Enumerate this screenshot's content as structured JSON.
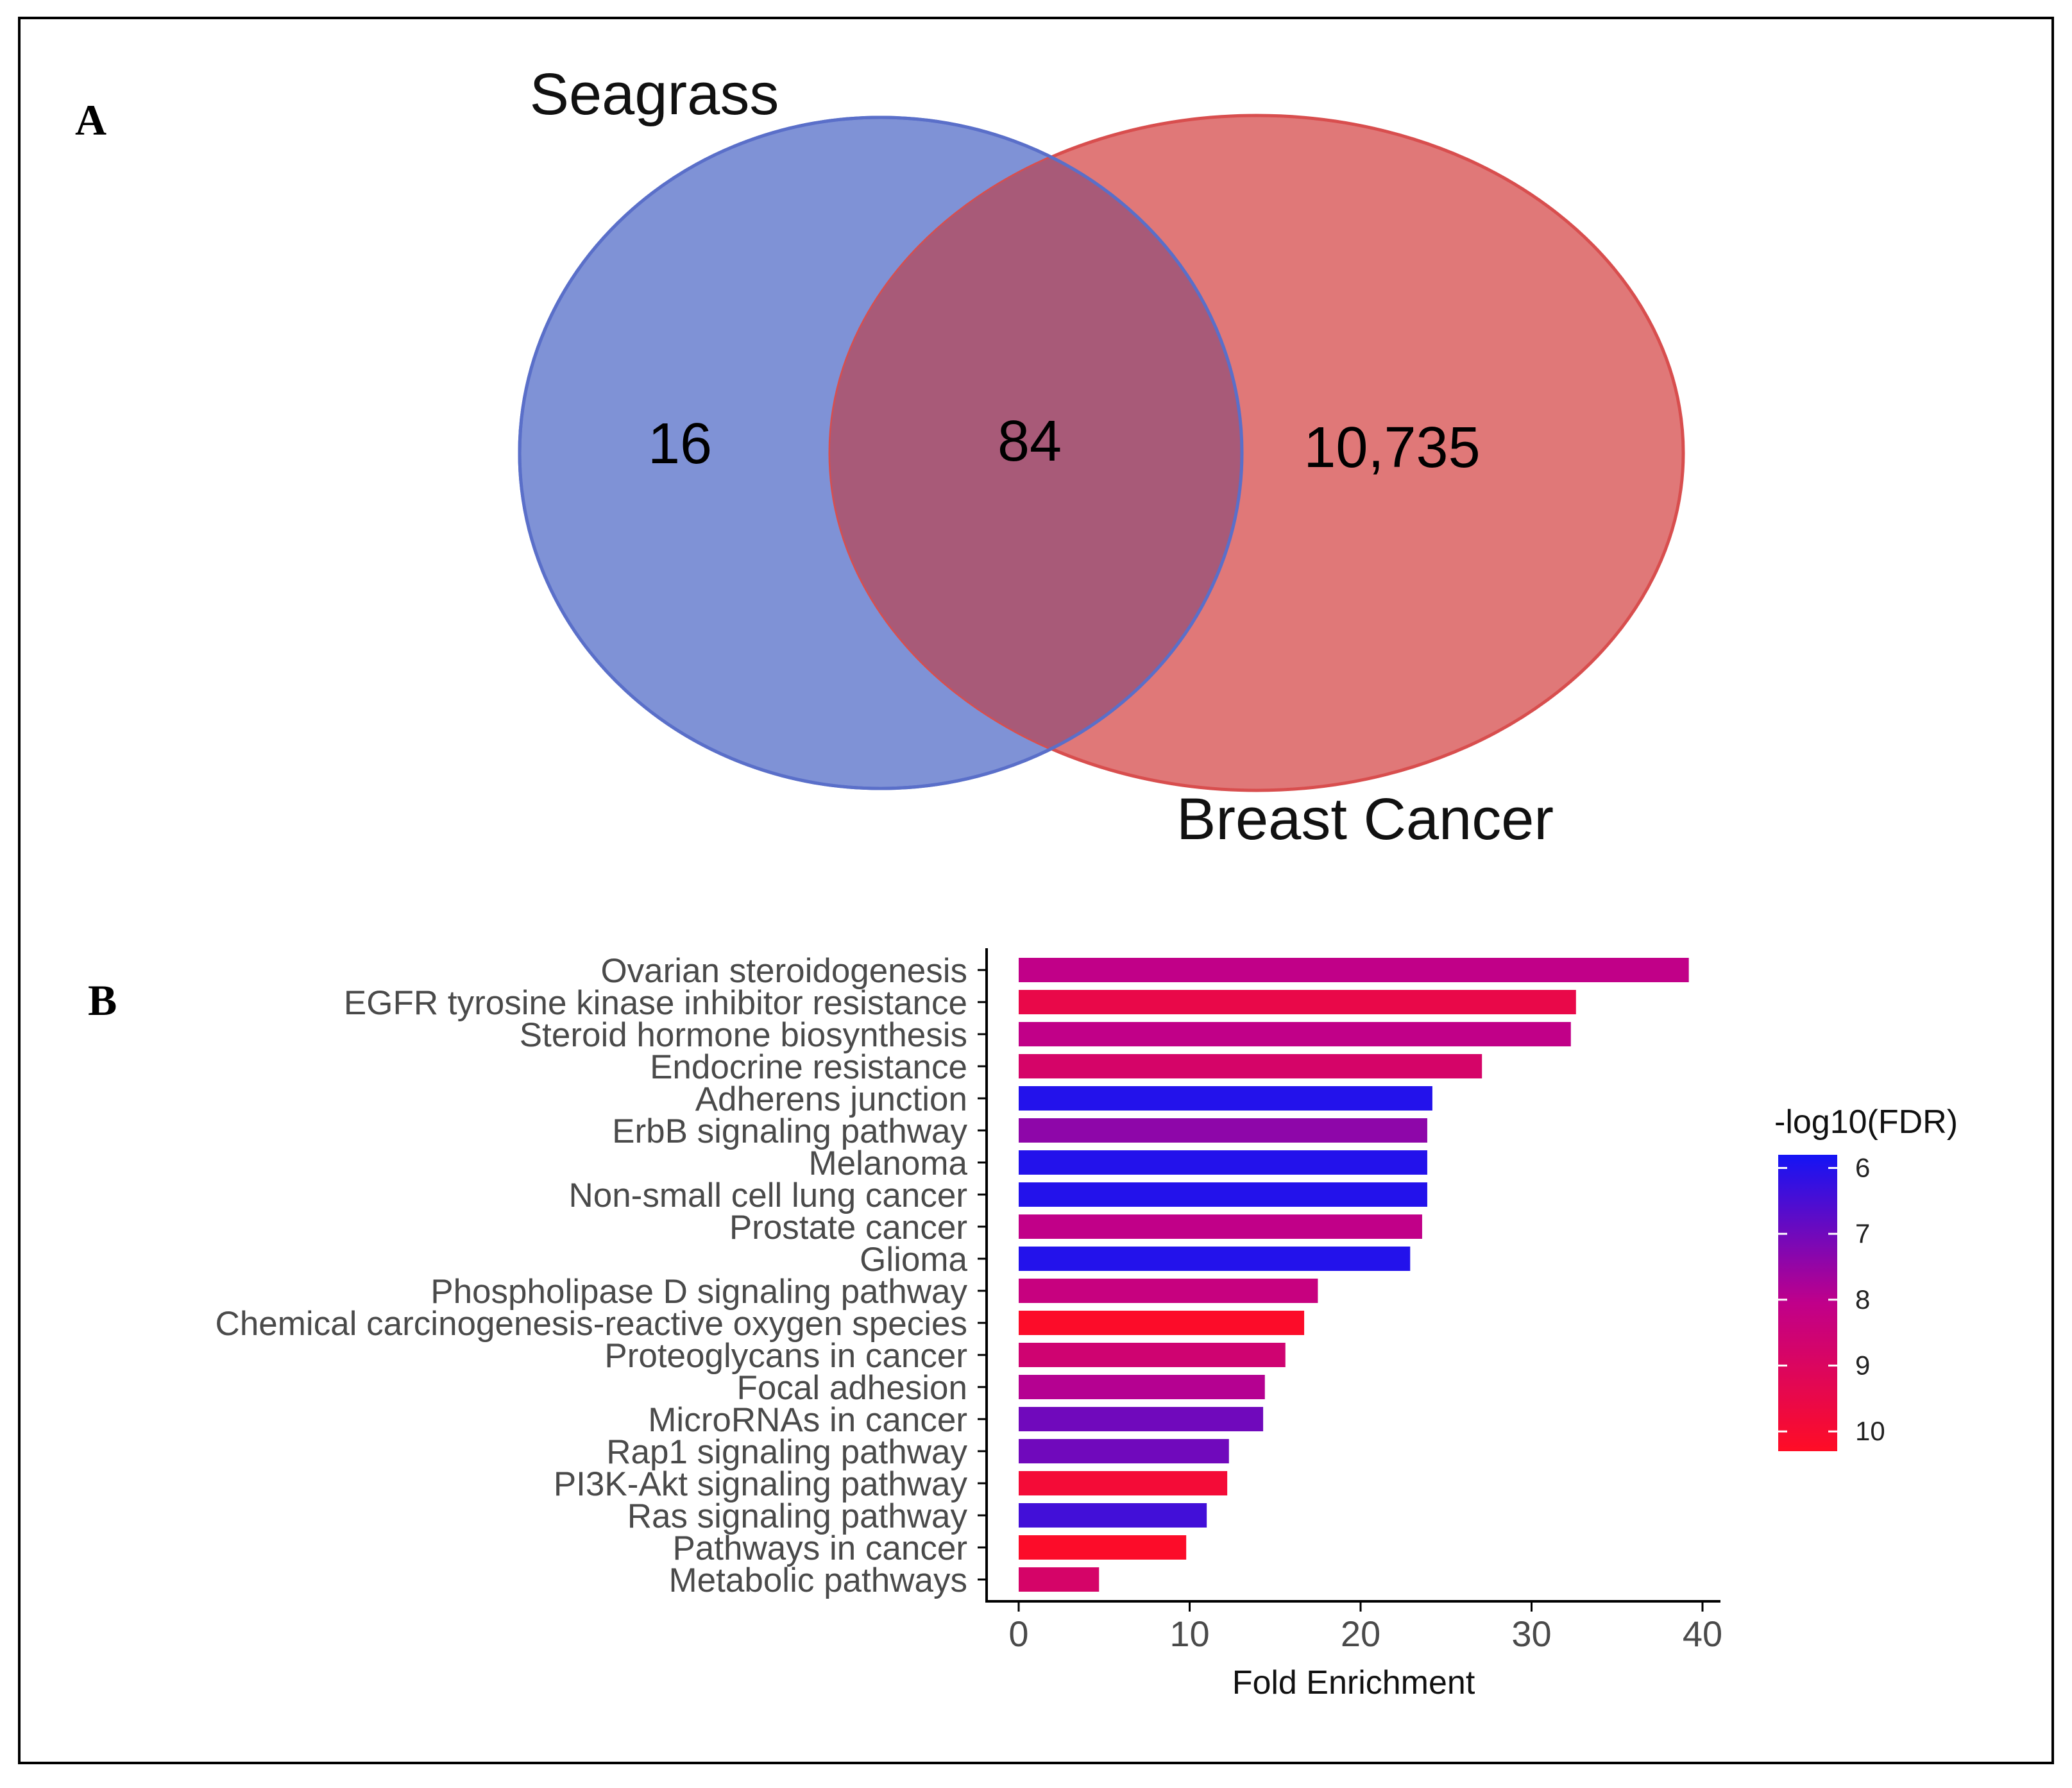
{
  "panels": {
    "a_label": "A",
    "b_label": "B"
  },
  "colors": {
    "set_a": "#7f92d6",
    "set_a_stroke": "#5a6fc9",
    "set_b": "#e07878",
    "set_b_stroke": "#d84e4e",
    "overlap": "#a85a78",
    "gradient_low": "#1414f5",
    "gradient_mid": "#c0008a",
    "gradient_high": "#ff0d25"
  },
  "chart_data": [
    {
      "type": "venn",
      "sets": [
        "Seagrass",
        "Breast Cancer"
      ],
      "only_a": "16",
      "intersection": "84",
      "only_b": "10,735"
    },
    {
      "type": "bar",
      "orientation": "horizontal",
      "xlabel": "Fold Enrichment",
      "xlim": [
        0,
        40
      ],
      "xticks": [
        0,
        10,
        20,
        30,
        40
      ],
      "legend": {
        "title": "-log10(FDR)",
        "ticks": [
          6,
          7,
          8,
          9,
          10
        ],
        "range": [
          5.8,
          10.3
        ],
        "position": "right"
      },
      "categories": [
        "Ovarian steroidogenesis",
        "EGFR tyrosine kinase inhibitor resistance",
        "Steroid hormone biosynthesis",
        "Endocrine resistance",
        "Adherens junction",
        "ErbB signaling pathway",
        "Melanoma",
        "Non-small cell lung cancer",
        "Prostate cancer",
        "Glioma",
        "Phospholipase D signaling pathway",
        "Chemical carcinogenesis-reactive oxygen species",
        "Proteoglycans in cancer",
        "Focal adhesion",
        "MicroRNAs in cancer",
        "Rap1 signaling pathway",
        "PI3K-Akt signaling pathway",
        "Ras signaling pathway",
        "Pathways in cancer",
        "Metabolic pathways"
      ],
      "values": [
        39.2,
        32.6,
        32.3,
        27.1,
        24.2,
        23.9,
        23.9,
        23.9,
        23.6,
        22.9,
        17.5,
        16.7,
        15.6,
        14.4,
        14.3,
        12.3,
        12.2,
        11.0,
        9.8,
        4.7
      ],
      "neg_log10_fdr": [
        8.1,
        9.5,
        8.1,
        8.8,
        6.0,
        7.4,
        6.0,
        6.0,
        8.1,
        6.0,
        8.3,
        10.2,
        8.6,
        7.9,
        7.0,
        7.0,
        9.9,
        6.4,
        10.2,
        8.8
      ]
    }
  ]
}
